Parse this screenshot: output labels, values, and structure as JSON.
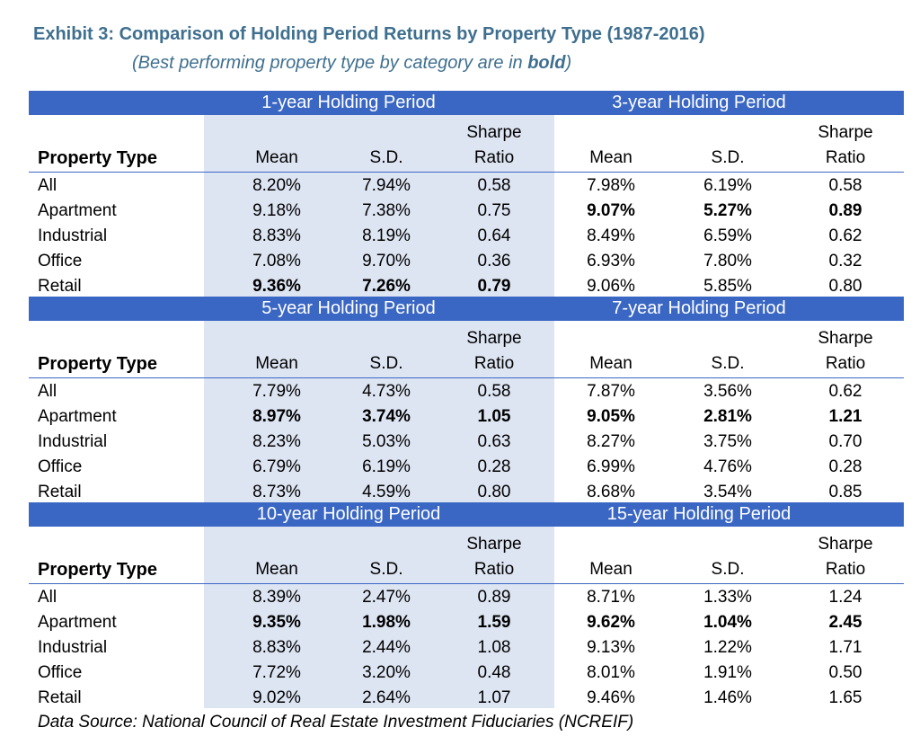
{
  "title": "Exhibit 3: Comparison of Holding Period Returns by Property Type (1987-2016)",
  "subtitle_prefix": "(Best performing property type by category are in ",
  "subtitle_bold": "bold",
  "subtitle_suffix": ")",
  "headers": {
    "property_type": "Property Type",
    "mean": "Mean",
    "sd": "S.D.",
    "sharpe_top": "Sharpe",
    "sharpe_bottom": "Ratio"
  },
  "rows": [
    "All",
    "Apartment",
    "Industrial",
    "Office",
    "Retail"
  ],
  "sections": [
    {
      "left": {
        "title": "1-year Holding Period",
        "data": [
          [
            "8.20%",
            "7.94%",
            "0.58"
          ],
          [
            "9.18%",
            "7.38%",
            "0.75"
          ],
          [
            "8.83%",
            "8.19%",
            "0.64"
          ],
          [
            "7.08%",
            "9.70%",
            "0.36"
          ],
          [
            "9.36%",
            "7.26%",
            "0.79"
          ]
        ],
        "bold_row": 4
      },
      "right": {
        "title": "3-year Holding Period",
        "data": [
          [
            "7.98%",
            "6.19%",
            "0.58"
          ],
          [
            "9.07%",
            "5.27%",
            "0.89"
          ],
          [
            "8.49%",
            "6.59%",
            "0.62"
          ],
          [
            "6.93%",
            "7.80%",
            "0.32"
          ],
          [
            "9.06%",
            "5.85%",
            "0.80"
          ]
        ],
        "bold_row": 1
      }
    },
    {
      "left": {
        "title": "5-year Holding Period",
        "data": [
          [
            "7.79%",
            "4.73%",
            "0.58"
          ],
          [
            "8.97%",
            "3.74%",
            "1.05"
          ],
          [
            "8.23%",
            "5.03%",
            "0.63"
          ],
          [
            "6.79%",
            "6.19%",
            "0.28"
          ],
          [
            "8.73%",
            "4.59%",
            "0.80"
          ]
        ],
        "bold_row": 1
      },
      "right": {
        "title": "7-year Holding Period",
        "data": [
          [
            "7.87%",
            "3.56%",
            "0.62"
          ],
          [
            "9.05%",
            "2.81%",
            "1.21"
          ],
          [
            "8.27%",
            "3.75%",
            "0.70"
          ],
          [
            "6.99%",
            "4.76%",
            "0.28"
          ],
          [
            "8.68%",
            "3.54%",
            "0.85"
          ]
        ],
        "bold_row": 1
      }
    },
    {
      "left": {
        "title": "10-year Holding Period",
        "data": [
          [
            "8.39%",
            "2.47%",
            "0.89"
          ],
          [
            "9.35%",
            "1.98%",
            "1.59"
          ],
          [
            "8.83%",
            "2.44%",
            "1.08"
          ],
          [
            "7.72%",
            "3.20%",
            "0.48"
          ],
          [
            "9.02%",
            "2.64%",
            "1.07"
          ]
        ],
        "bold_row": 1
      },
      "right": {
        "title": "15-year Holding Period",
        "data": [
          [
            "8.71%",
            "1.33%",
            "1.24"
          ],
          [
            "9.62%",
            "1.04%",
            "2.45"
          ],
          [
            "9.13%",
            "1.22%",
            "1.71"
          ],
          [
            "8.01%",
            "1.91%",
            "0.50"
          ],
          [
            "9.46%",
            "1.46%",
            "1.65"
          ]
        ],
        "bold_row": 1
      }
    }
  ],
  "footer": "Data Source: National Council of Real Estate Investment Fiduciaries (NCREIF)",
  "colors": {
    "band": "#3b67c4",
    "shade": "#dde4f2",
    "title": "#3f6f8f"
  }
}
